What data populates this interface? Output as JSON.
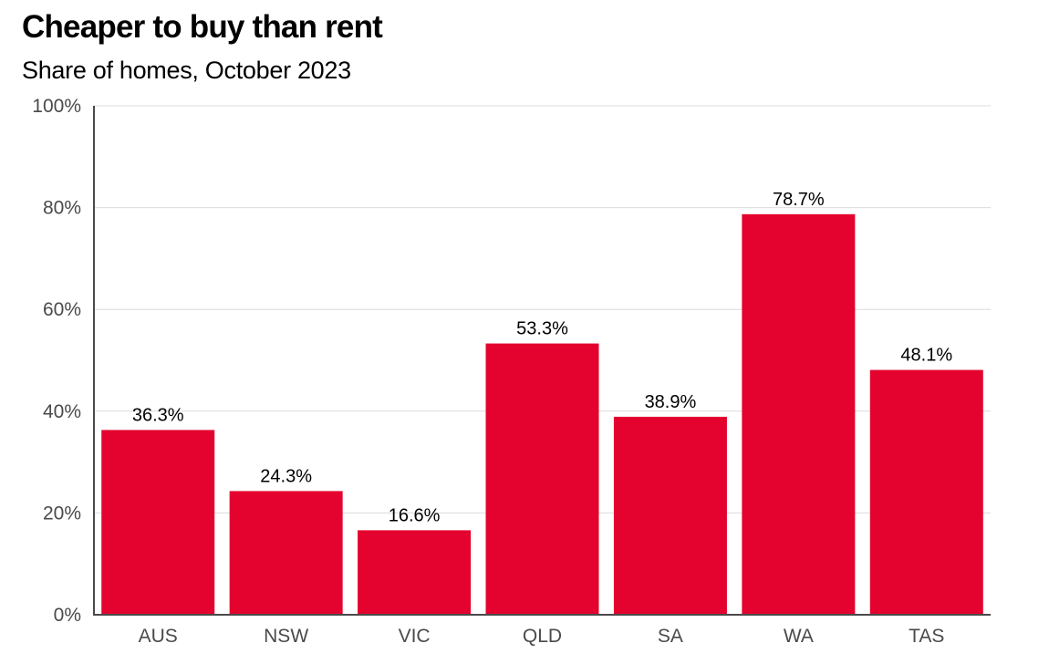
{
  "chart": {
    "title": "Cheaper to buy than rent",
    "subtitle": "Share of homes, October 2023"
  },
  "chart_data": {
    "type": "bar",
    "title": "Cheaper to buy than rent",
    "subtitle": "Share of homes, October 2023",
    "categories": [
      "AUS",
      "NSW",
      "VIC",
      "QLD",
      "SA",
      "WA",
      "TAS"
    ],
    "values": [
      36.3,
      24.3,
      16.6,
      53.3,
      38.9,
      78.7,
      48.1
    ],
    "value_labels": [
      "36.3%",
      "24.3%",
      "16.6%",
      "53.3%",
      "38.9%",
      "78.7%",
      "48.1%"
    ],
    "ylim": [
      0,
      100
    ],
    "yticks": [
      0,
      20,
      40,
      60,
      80,
      100
    ],
    "ytick_labels": [
      "0%",
      "20%",
      "40%",
      "60%",
      "80%",
      "100%"
    ],
    "xlabel": "",
    "ylabel": "",
    "grid": true,
    "bar_color": "#e4032e",
    "grid_color": "#dcdcdc",
    "axis_color": "#4a4a4a"
  }
}
